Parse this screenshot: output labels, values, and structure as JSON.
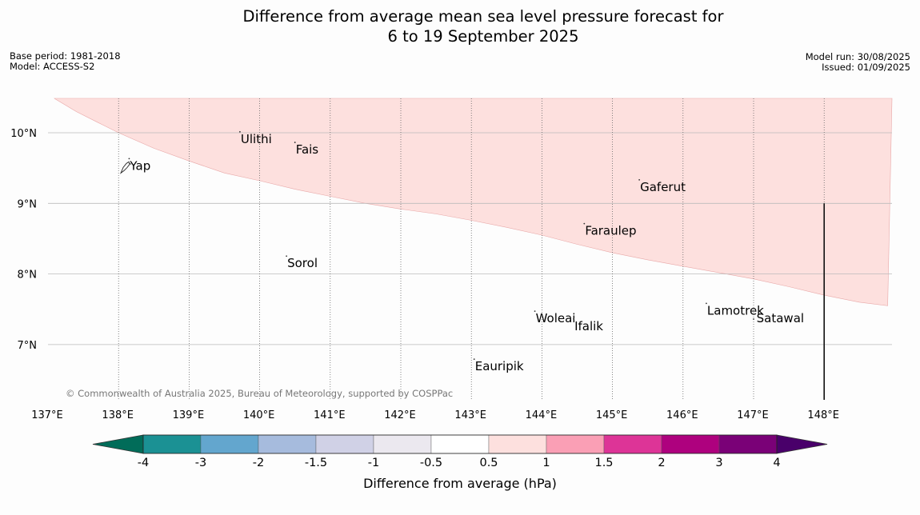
{
  "title": {
    "line1": "Difference from average mean sea level pressure forecast for",
    "line2": "6 to 19 September 2025"
  },
  "meta_left": {
    "base_period": "Base period: 1981-2018",
    "model": "Model: ACCESS-S2"
  },
  "meta_right": {
    "model_run": "Model run: 30/08/2025",
    "issued": "Issued: 01/09/2025"
  },
  "copyright": "© Commonwealth of Australia 2025, Bureau of Meteorology, supported by COSPPac",
  "map": {
    "lon_range": [
      137,
      149
    ],
    "lat_range": [
      6.2,
      10.5
    ],
    "lon_ticks": [
      137,
      138,
      139,
      140,
      141,
      142,
      143,
      144,
      145,
      146,
      147,
      148
    ],
    "lon_tick_labels": [
      "137°E",
      "138°E",
      "139°E",
      "140°E",
      "141°E",
      "142°E",
      "143°E",
      "144°E",
      "145°E",
      "146°E",
      "147°E",
      "148°E"
    ],
    "lat_ticks": [
      10,
      9,
      8,
      7
    ],
    "lat_tick_labels": [
      "10°N",
      "9°N",
      "8°N",
      "7°N"
    ],
    "anomaly_region": {
      "category": "0.5 to 1",
      "color": "#fde0de",
      "boundary_lon": [
        136.9,
        137.1,
        137.4,
        137.7,
        138,
        138.5,
        139,
        139.5,
        140,
        140.5,
        141,
        141.5,
        142,
        142.5,
        143,
        143.5,
        144,
        144.5,
        145,
        145.5,
        146,
        146.5,
        147,
        147.5,
        148,
        148.5,
        148.9
      ],
      "boundary_lat": [
        10.5,
        10.48,
        10.3,
        10.15,
        10.0,
        9.78,
        9.6,
        9.43,
        9.32,
        9.2,
        9.1,
        9.0,
        8.92,
        8.85,
        8.76,
        8.66,
        8.55,
        8.42,
        8.3,
        8.2,
        8.11,
        8.02,
        7.93,
        7.82,
        7.7,
        7.6,
        7.55
      ]
    },
    "boundary_line_lon": 148,
    "boundary_line_lat": [
      6.2,
      9.0
    ],
    "places": [
      {
        "name": "Ulithi",
        "lon": 139.72,
        "lat": 9.9
      },
      {
        "name": "Fais",
        "lon": 140.5,
        "lat": 9.75
      },
      {
        "name": "Yap",
        "lon": 138.15,
        "lat": 9.52
      },
      {
        "name": "Gaferut",
        "lon": 145.38,
        "lat": 9.22
      },
      {
        "name": "Faraulep",
        "lon": 144.6,
        "lat": 8.6
      },
      {
        "name": "Sorol",
        "lon": 140.38,
        "lat": 8.14
      },
      {
        "name": "Lamotrek",
        "lon": 146.33,
        "lat": 7.47
      },
      {
        "name": "Woleai",
        "lon": 143.9,
        "lat": 7.36
      },
      {
        "name": "Ifalik",
        "lon": 144.45,
        "lat": 7.25
      },
      {
        "name": "Satawal",
        "lon": 147.03,
        "lat": 7.36
      },
      {
        "name": "Eauripik",
        "lon": 143.04,
        "lat": 6.68
      }
    ]
  },
  "colorbar": {
    "label": "Difference from average (hPa)",
    "tick_labels": [
      "-4",
      "-3",
      "-2",
      "-1.5",
      "-1",
      "-0.5",
      "0.5",
      "1",
      "1.5",
      "2",
      "3",
      "4"
    ],
    "colors": [
      "#1b9194",
      "#63a6ce",
      "#a6bbdd",
      "#d0d1e6",
      "#ebe8ef",
      "#ffffff",
      "#fde0de",
      "#fa9fb5",
      "#dd3497",
      "#ae017e",
      "#7a0177"
    ],
    "extend_low_color": "#016c59",
    "extend_high_color": "#49006a"
  }
}
